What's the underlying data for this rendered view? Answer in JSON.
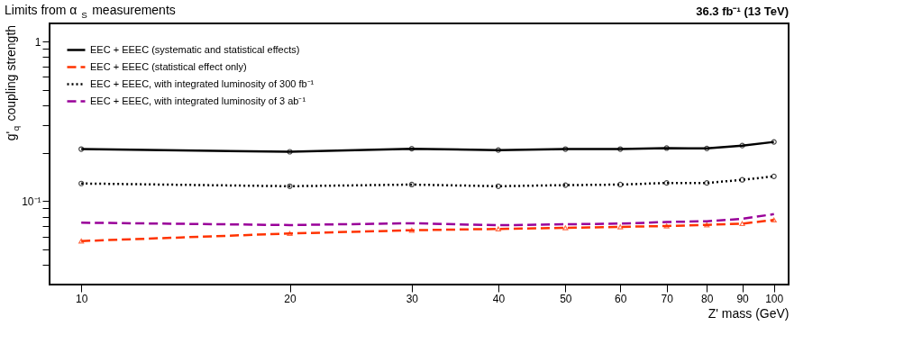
{
  "chart_data": {
    "type": "line",
    "title": "Limits from α$_{S}$ measurements",
    "subtitle": "36.3 fb⁻¹ (13 TeV)",
    "xlabel": "Z' mass (GeV)",
    "ylabel": "g'$_{q}$ coupling strength",
    "x": [
      10,
      20,
      30,
      40,
      50,
      60,
      70,
      80,
      90,
      100
    ],
    "series": [
      {
        "name": "EEC + EEEC (systematic and statistical effects)",
        "color": "#000000",
        "line_style": "solid",
        "marker": "circle",
        "values": [
          0.212,
          0.204,
          0.213,
          0.209,
          0.212,
          0.212,
          0.215,
          0.214,
          0.223,
          0.235
        ]
      },
      {
        "name": "EEC + EEEC (statistical effect only)",
        "color": "#ff3300",
        "line_style": "dashed",
        "marker": "triangle",
        "values": [
          0.0562,
          0.0627,
          0.0657,
          0.067,
          0.068,
          0.069,
          0.0698,
          0.071,
          0.0723,
          0.0762
        ]
      },
      {
        "name": "EEC + EEEC, with integrated luminosity of 300 fb⁻¹",
        "color": "#000000",
        "line_style": "dotted",
        "marker": "circle",
        "values": [
          0.129,
          0.124,
          0.127,
          0.124,
          0.126,
          0.127,
          0.13,
          0.13,
          0.136,
          0.143
        ]
      },
      {
        "name": "EEC + EEEC, with integrated luminosity of 3 ab⁻¹",
        "color": "#990099",
        "line_style": "dashed",
        "marker": "none",
        "values": [
          0.0733,
          0.0708,
          0.0727,
          0.0706,
          0.0716,
          0.0723,
          0.074,
          0.0748,
          0.0775,
          0.0829
        ]
      }
    ],
    "log": "xy",
    "grid": false,
    "legend": "top left",
    "xlim": [
      9,
      105
    ],
    "xticks": [
      10,
      20,
      30,
      40,
      50,
      60,
      70,
      80,
      90,
      100
    ],
    "ylim": [
      0.03,
      1.3
    ],
    "yticks": [
      {
        "value": 0.04,
        "label": null
      },
      {
        "value": 0.05,
        "label": null
      },
      {
        "value": 0.06,
        "label": null
      },
      {
        "value": 0.07,
        "label": null
      },
      {
        "value": 0.08,
        "label": null
      },
      {
        "value": 0.09,
        "label": null
      },
      {
        "value": 0.1,
        "label": "10⁻¹"
      },
      {
        "value": 0.2,
        "label": null
      },
      {
        "value": 0.3,
        "label": null
      },
      {
        "value": 0.4,
        "label": null
      },
      {
        "value": 0.5,
        "label": null
      },
      {
        "value": 0.6,
        "label": null
      },
      {
        "value": 0.7,
        "label": null
      },
      {
        "value": 0.8,
        "label": null
      },
      {
        "value": 0.9,
        "label": null
      },
      {
        "value": 1,
        "label": "1"
      }
    ]
  }
}
